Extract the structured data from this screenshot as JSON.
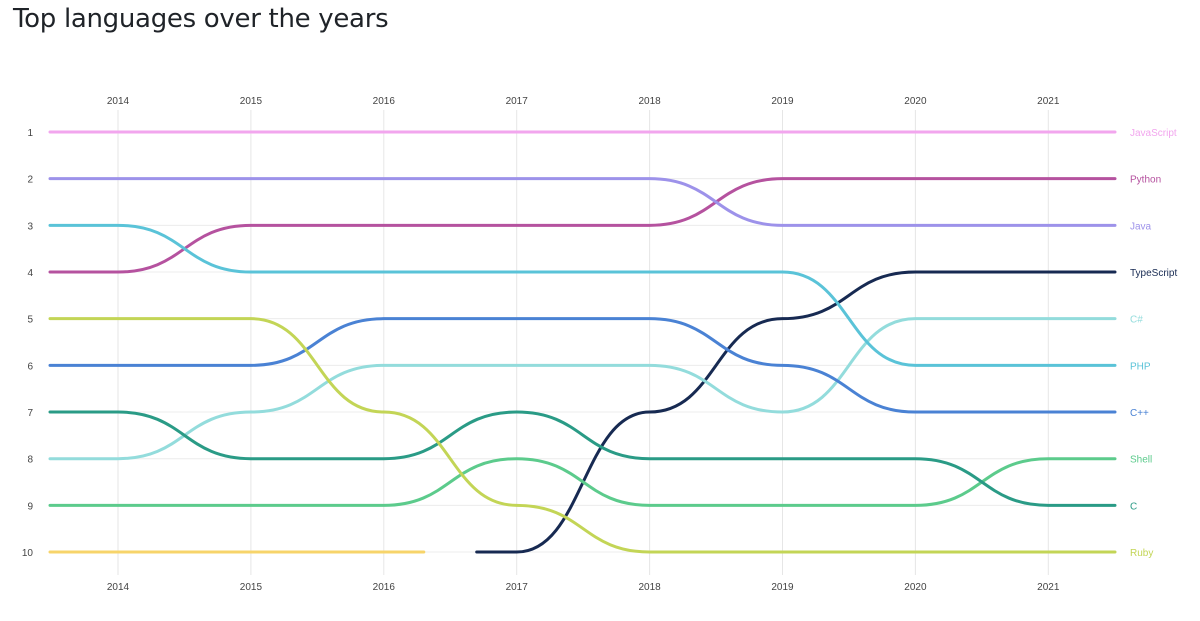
{
  "chart_data": {
    "type": "bump",
    "title": "Top languages over the years",
    "years": [
      2014,
      2015,
      2016,
      2017,
      2018,
      2019,
      2020,
      2021
    ],
    "ranks": [
      1,
      2,
      3,
      4,
      5,
      6,
      7,
      8,
      9,
      10
    ],
    "grid": true,
    "legend": "right, labels at line ends",
    "series": [
      {
        "name": "JavaScript",
        "color": "#f2a6ee",
        "values": [
          1,
          1,
          1,
          1,
          1,
          1,
          1,
          1
        ]
      },
      {
        "name": "Python",
        "color": "#b5529f",
        "values": [
          4,
          3,
          3,
          3,
          3,
          2,
          2,
          2
        ]
      },
      {
        "name": "Java",
        "color": "#9d92ea",
        "values": [
          2,
          2,
          2,
          2,
          2,
          3,
          3,
          3
        ]
      },
      {
        "name": "TypeScript",
        "color": "#172a52",
        "values": [
          null,
          null,
          null,
          10,
          7,
          5,
          4,
          4
        ]
      },
      {
        "name": "C#",
        "color": "#93dcdc",
        "values": [
          8,
          7,
          6,
          6,
          6,
          7,
          5,
          5
        ]
      },
      {
        "name": "PHP",
        "color": "#5ac3d8",
        "values": [
          3,
          4,
          4,
          4,
          4,
          4,
          6,
          6
        ]
      },
      {
        "name": "C++",
        "color": "#4a82d4",
        "values": [
          6,
          6,
          5,
          5,
          5,
          6,
          7,
          7
        ]
      },
      {
        "name": "Shell",
        "color": "#5ccb8c",
        "values": [
          9,
          9,
          9,
          8,
          9,
          9,
          9,
          8
        ]
      },
      {
        "name": "C",
        "color": "#2a9b86",
        "values": [
          7,
          8,
          8,
          7,
          8,
          8,
          8,
          9
        ]
      },
      {
        "name": "Ruby",
        "color": "#c3d556",
        "values": [
          5,
          5,
          7,
          9,
          10,
          10,
          10,
          10
        ]
      },
      {
        "name": "",
        "color": "#f7d46a",
        "values": [
          10,
          10,
          10,
          null,
          null,
          null,
          null,
          null
        ]
      }
    ]
  }
}
